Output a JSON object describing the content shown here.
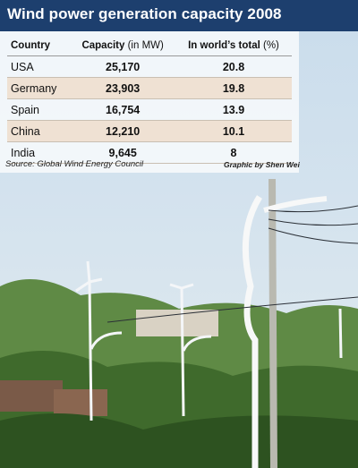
{
  "header": {
    "title": "Wind power generation capacity 2008"
  },
  "table": {
    "columns": [
      {
        "name": "Country"
      },
      {
        "name": "Capacity",
        "unit": "(in MW)"
      },
      {
        "name": "In world’s total",
        "unit": "(%)"
      }
    ],
    "rows": [
      [
        "USA",
        "25,170",
        "20.8"
      ],
      [
        "Germany",
        "23,903",
        "19.8"
      ],
      [
        "Spain",
        "16,754",
        "13.9"
      ],
      [
        "China",
        "12,210",
        "10.1"
      ],
      [
        "India",
        "9,645",
        "8"
      ]
    ]
  },
  "footer": {
    "source": "Source: Global Wind Energy Council",
    "credit": "Graphic by Shen Wei"
  }
}
